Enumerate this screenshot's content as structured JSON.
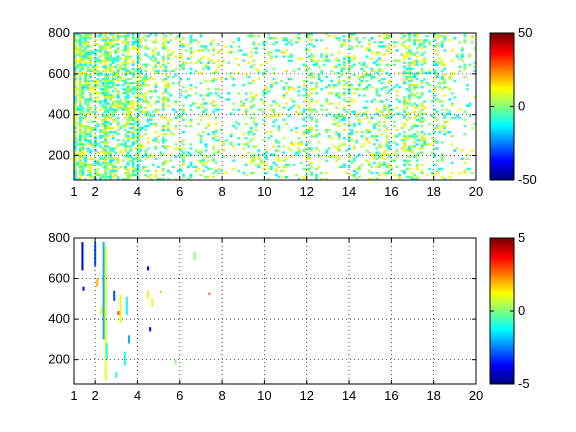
{
  "chart_data": [
    {
      "type": "heatmap",
      "title": "",
      "xlabel": "",
      "ylabel": "",
      "xlim": [
        1,
        20
      ],
      "ylim": [
        80,
        800
      ],
      "xticks": [
        1,
        2,
        4,
        6,
        8,
        10,
        12,
        14,
        16,
        18,
        20
      ],
      "xtick_labels": [
        "1",
        "2",
        "4",
        "6",
        "8",
        "10",
        "12",
        "14",
        "16",
        "18",
        "20"
      ],
      "yticks": [
        200,
        400,
        600,
        800
      ],
      "ytick_labels": [
        "200",
        "400",
        "600",
        "800"
      ],
      "grid": true,
      "colorbar": {
        "colormap": "jet",
        "limits": [
          -50,
          50
        ],
        "ticks": [
          -50,
          0,
          50
        ],
        "tick_labels": [
          "-50",
          "0",
          "50"
        ]
      },
      "value_range_shown": [
        -15,
        15
      ],
      "density_profile": [
        [
          1,
          0.85
        ],
        [
          2,
          0.85
        ],
        [
          3,
          0.8
        ],
        [
          3.6,
          0.9
        ],
        [
          4,
          0.75
        ],
        [
          4.5,
          0.6
        ],
        [
          5,
          0.55
        ],
        [
          6,
          0.35
        ],
        [
          7,
          0.3
        ],
        [
          8,
          0.15
        ],
        [
          9,
          0.2
        ],
        [
          10,
          0.25
        ],
        [
          11,
          0.2
        ],
        [
          12,
          0.35
        ],
        [
          13,
          0.3
        ],
        [
          14,
          0.35
        ],
        [
          15,
          0.15
        ],
        [
          16,
          0.3
        ],
        [
          17,
          0.4
        ],
        [
          18,
          0.3
        ],
        [
          19,
          0.2
        ],
        [
          20,
          0.2
        ]
      ]
    },
    {
      "type": "heatmap",
      "title": "",
      "xlabel": "",
      "ylabel": "",
      "xlim": [
        1,
        20
      ],
      "ylim": [
        80,
        800
      ],
      "xticks": [
        1,
        2,
        4,
        6,
        8,
        10,
        12,
        14,
        16,
        18,
        20
      ],
      "xtick_labels": [
        "1",
        "2",
        "4",
        "6",
        "8",
        "10",
        "12",
        "14",
        "16",
        "18",
        "20"
      ],
      "yticks": [
        200,
        400,
        600,
        800
      ],
      "ytick_labels": [
        "200",
        "400",
        "600",
        "800"
      ],
      "grid": true,
      "colorbar": {
        "colormap": "jet",
        "limits": [
          -5,
          5
        ],
        "ticks": [
          -5,
          0,
          5
        ],
        "tick_labels": [
          "-5",
          "0",
          "5"
        ]
      },
      "segments": [
        {
          "x": 1.4,
          "y0": 640,
          "y1": 780,
          "value": -4
        },
        {
          "x": 1.45,
          "y0": 540,
          "y1": 560,
          "value": -4
        },
        {
          "x": 2.0,
          "y0": 660,
          "y1": 780,
          "value": -3
        },
        {
          "x": 2.1,
          "y0": 560,
          "y1": 600,
          "value": 2
        },
        {
          "x": 2.3,
          "y0": 420,
          "y1": 460,
          "value": 1
        },
        {
          "x": 2.4,
          "y0": 300,
          "y1": 780,
          "value": -2
        },
        {
          "x": 2.5,
          "y0": 100,
          "y1": 760,
          "value": 1
        },
        {
          "x": 2.55,
          "y0": 200,
          "y1": 280,
          "value": -1
        },
        {
          "x": 2.9,
          "y0": 490,
          "y1": 540,
          "value": -3
        },
        {
          "x": 3.0,
          "y0": 110,
          "y1": 140,
          "value": -1
        },
        {
          "x": 3.1,
          "y0": 420,
          "y1": 440,
          "value": 3
        },
        {
          "x": 3.2,
          "y0": 380,
          "y1": 520,
          "value": 1
        },
        {
          "x": 3.4,
          "y0": 170,
          "y1": 240,
          "value": -1
        },
        {
          "x": 3.5,
          "y0": 420,
          "y1": 510,
          "value": -1
        },
        {
          "x": 3.6,
          "y0": 280,
          "y1": 320,
          "value": -2
        },
        {
          "x": 4.5,
          "y0": 640,
          "y1": 660,
          "value": -4
        },
        {
          "x": 4.5,
          "y0": 500,
          "y1": 540,
          "value": 1
        },
        {
          "x": 4.6,
          "y0": 340,
          "y1": 360,
          "value": -4
        },
        {
          "x": 4.7,
          "y0": 460,
          "y1": 500,
          "value": 1
        },
        {
          "x": 5.1,
          "y0": 530,
          "y1": 540,
          "value": 2
        },
        {
          "x": 5.8,
          "y0": 180,
          "y1": 200,
          "value": 0
        },
        {
          "x": 6.7,
          "y0": 690,
          "y1": 730,
          "value": 0
        },
        {
          "x": 7.4,
          "y0": 520,
          "y1": 530,
          "value": 3
        }
      ]
    }
  ]
}
